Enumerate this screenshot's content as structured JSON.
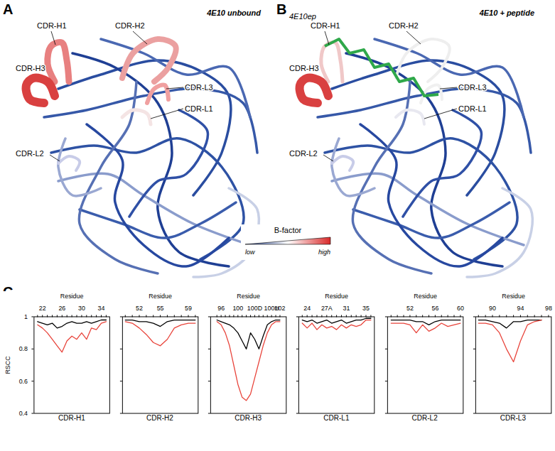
{
  "panels": [
    {
      "letter": "A",
      "title": "4E10 unbound",
      "cdr_labels": [
        "CDR-H1",
        "CDR-H2",
        "CDR-H3",
        "CDR-L3",
        "CDR-L1",
        "CDR-L2"
      ]
    },
    {
      "letter": "B",
      "title": "4E10 + peptide",
      "peptide_label": "4E10ep",
      "cdr_labels": [
        "CDR-H1",
        "CDR-H2",
        "CDR-H3",
        "CDR-L3",
        "CDR-L1",
        "CDR-L2"
      ]
    }
  ],
  "color_bar": {
    "title": "B-factor",
    "low": "low",
    "high": "high"
  },
  "panel_c_letter": "C",
  "chart_data": [
    {
      "type": "line",
      "title": "CDR-H1",
      "x_label": "Residue",
      "y_label": "RSCC",
      "categories": [
        null,
        "22",
        null,
        null,
        null,
        "26",
        null,
        null,
        null,
        "30",
        null,
        null,
        null,
        "34",
        null
      ],
      "series": [
        {
          "color": "#000000",
          "values": [
            0.97,
            0.96,
            0.95,
            0.96,
            0.93,
            0.94,
            0.96,
            0.97,
            0.96,
            0.96,
            0.97,
            0.96,
            0.97,
            0.98,
            0.98
          ]
        },
        {
          "color": "#e8433a",
          "values": [
            0.95,
            0.93,
            0.9,
            0.86,
            0.82,
            0.78,
            0.85,
            0.88,
            0.86,
            0.9,
            0.86,
            0.93,
            0.92,
            0.96,
            0.97
          ]
        }
      ],
      "ylim": [
        0.4,
        1
      ],
      "yticks": [
        0.4,
        0.6,
        0.8,
        1
      ]
    },
    {
      "type": "line",
      "title": "CDR-H2",
      "x_label": "Residue",
      "tick_labels": "x",
      "categories": [
        null,
        null,
        "52",
        null,
        null,
        "55",
        null,
        null,
        null,
        "59",
        null
      ],
      "series": [
        {
          "color": "#000000",
          "values": [
            0.98,
            0.98,
            0.97,
            0.97,
            0.96,
            0.94,
            0.97,
            0.98,
            0.98,
            0.98,
            0.98
          ]
        },
        {
          "color": "#e8433a",
          "values": [
            0.97,
            0.96,
            0.93,
            0.89,
            0.84,
            0.82,
            0.86,
            0.93,
            0.95,
            0.96,
            0.96
          ]
        }
      ],
      "ylim": [
        0.4,
        1
      ],
      "yticks": [
        0.4,
        0.6,
        0.8,
        1
      ]
    },
    {
      "type": "line",
      "title": "CDR-H3",
      "x_label": "Residue",
      "tick_labels": "x",
      "categories": [
        null,
        "96",
        null,
        null,
        null,
        "100",
        null,
        null,
        null,
        "100D",
        null,
        null,
        null,
        "100H",
        null,
        "102"
      ],
      "series": [
        {
          "color": "#000000",
          "values": [
            0.98,
            0.97,
            0.96,
            0.95,
            0.93,
            0.9,
            0.85,
            0.8,
            0.9,
            0.86,
            0.8,
            0.88,
            0.95,
            0.97,
            0.98,
            0.98
          ]
        },
        {
          "color": "#e8433a",
          "values": [
            0.97,
            0.95,
            0.9,
            0.82,
            0.7,
            0.58,
            0.5,
            0.48,
            0.52,
            0.62,
            0.72,
            0.82,
            0.9,
            0.95,
            0.97,
            0.97
          ]
        }
      ],
      "ylim": [
        0.4,
        1
      ],
      "yticks": [
        0.4,
        0.6,
        0.8,
        1
      ]
    },
    {
      "type": "line",
      "title": "CDR-L1",
      "x_label": "Residue",
      "tick_labels": "x",
      "categories": [
        null,
        "24",
        null,
        null,
        null,
        "27A",
        null,
        null,
        null,
        "31",
        null,
        null,
        null,
        "35",
        null
      ],
      "series": [
        {
          "color": "#000000",
          "values": [
            0.98,
            0.97,
            0.98,
            0.96,
            0.97,
            0.98,
            0.96,
            0.97,
            0.98,
            0.96,
            0.97,
            0.98,
            0.98,
            0.99,
            0.99
          ]
        },
        {
          "color": "#e8433a",
          "values": [
            0.96,
            0.93,
            0.96,
            0.92,
            0.95,
            0.93,
            0.94,
            0.92,
            0.95,
            0.93,
            0.95,
            0.94,
            0.95,
            0.98,
            0.98
          ]
        }
      ],
      "ylim": [
        0.4,
        1
      ],
      "yticks": [
        0.4,
        0.6,
        0.8,
        1
      ]
    },
    {
      "type": "line",
      "title": "CDR-L2",
      "x_label": "Residue",
      "tick_labels": "x",
      "categories": [
        null,
        null,
        null,
        "52",
        null,
        null,
        null,
        "56",
        null,
        null,
        null,
        "60"
      ],
      "series": [
        {
          "color": "#000000",
          "values": [
            0.98,
            0.98,
            0.98,
            0.98,
            0.97,
            0.97,
            0.95,
            0.97,
            0.98,
            0.98,
            0.98,
            0.98
          ]
        },
        {
          "color": "#e8433a",
          "values": [
            0.96,
            0.96,
            0.96,
            0.95,
            0.9,
            0.95,
            0.91,
            0.93,
            0.96,
            0.94,
            0.95,
            0.96
          ]
        }
      ],
      "ylim": [
        0.4,
        1
      ],
      "yticks": [
        0.4,
        0.6,
        0.8,
        1
      ]
    },
    {
      "type": "line",
      "title": "CDR-L3",
      "x_label": "Residue",
      "tick_labels": "x",
      "categories": [
        null,
        null,
        "90",
        null,
        null,
        null,
        "94",
        null,
        null,
        null,
        "98"
      ],
      "series": [
        {
          "color": "#000000",
          "values": [
            0.98,
            0.98,
            0.97,
            0.96,
            0.93,
            0.97,
            0.97,
            0.98,
            0.98,
            0.98,
            null
          ]
        },
        {
          "color": "#e8433a",
          "values": [
            0.96,
            0.96,
            0.95,
            0.9,
            0.8,
            0.72,
            0.85,
            0.95,
            0.97,
            0.98,
            null
          ]
        }
      ],
      "ylim": [
        0.4,
        1
      ],
      "yticks": [
        0.4,
        0.6,
        0.8,
        1
      ]
    }
  ]
}
